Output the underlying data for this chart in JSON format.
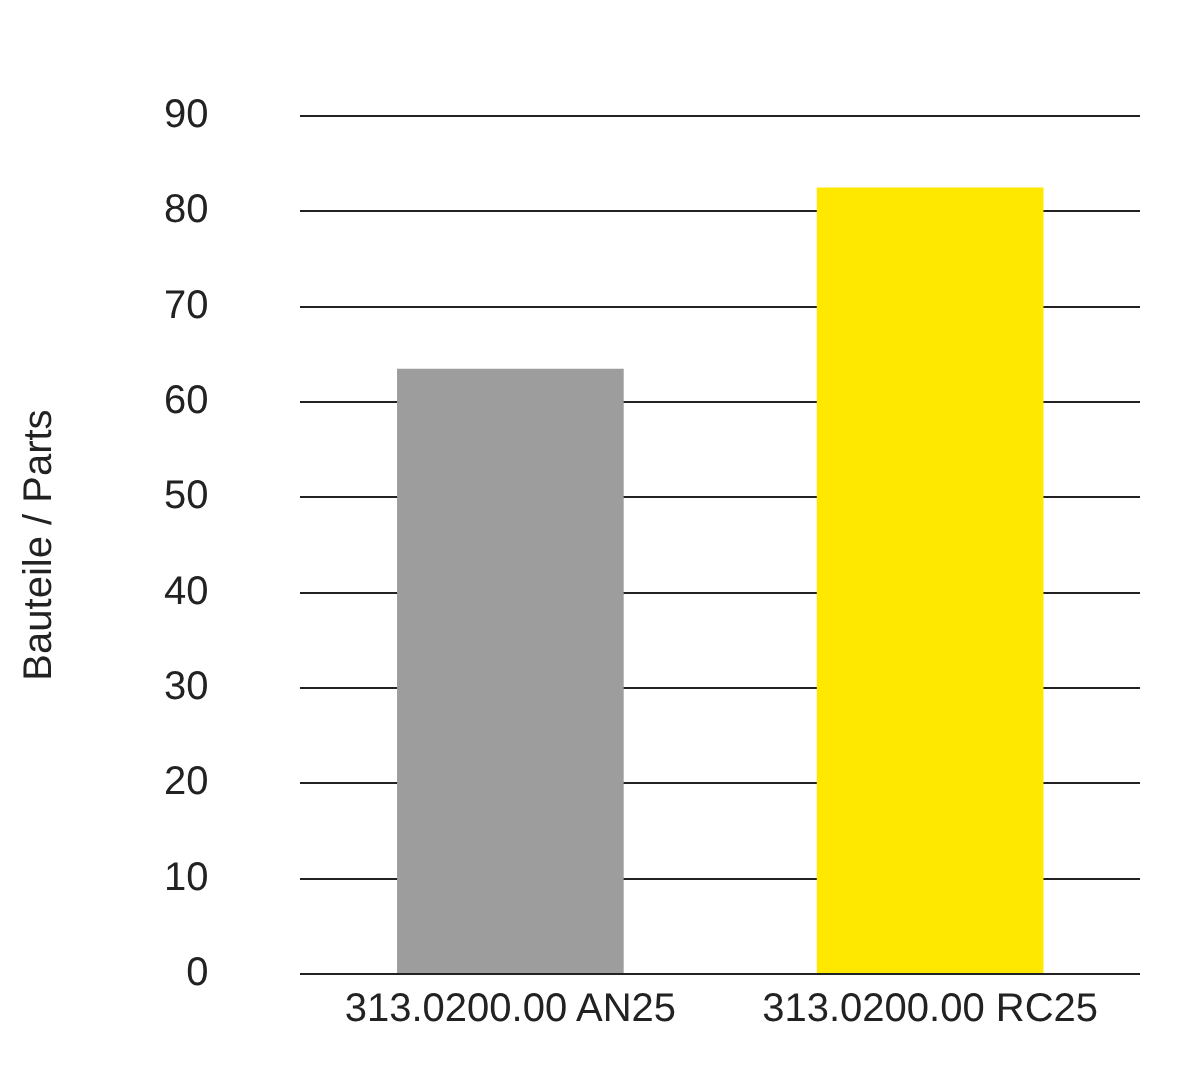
{
  "chart_data": {
    "type": "bar",
    "ylabel": "Bauteile / Parts",
    "categories": [
      "313.0200.00 AN25",
      "313.0200.00 RC25"
    ],
    "colors": [
      "#9d9d9d",
      "#ffe800"
    ],
    "values": [
      63.5,
      82.5
    ],
    "ylim": [
      0,
      90
    ],
    "yticks": [
      0,
      10,
      20,
      30,
      40,
      50,
      60,
      70,
      80,
      90
    ],
    "grid": "y"
  }
}
